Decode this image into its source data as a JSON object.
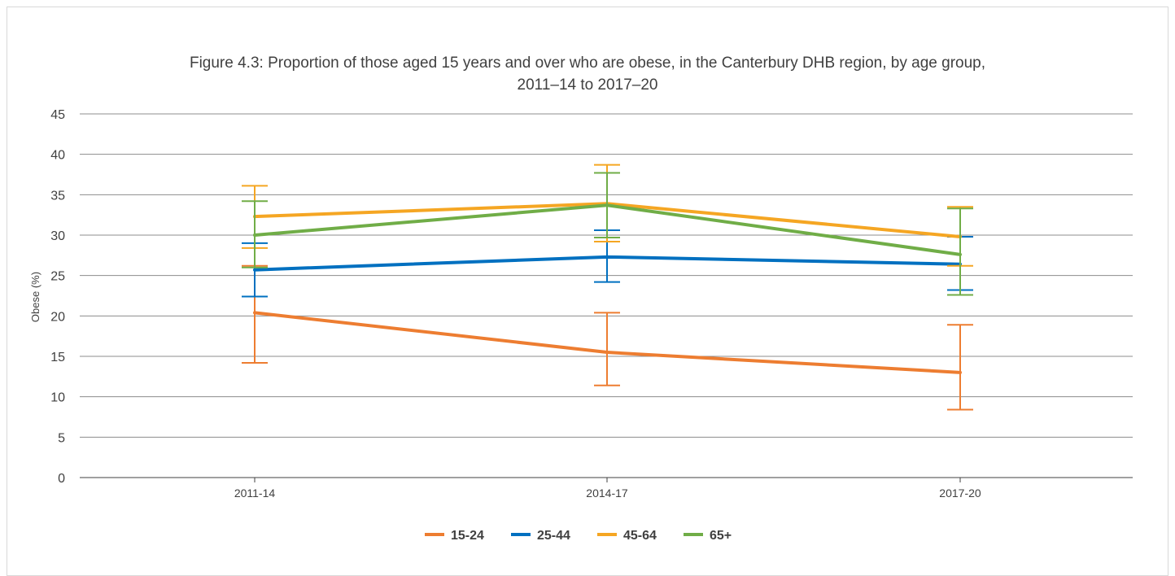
{
  "chart_data": {
    "type": "line",
    "title_line1": "Figure 4.3: Proportion of those aged 15 years and over who are obese, in the Canterbury DHB region, by age group,",
    "title_line2": "2011–14 to 2017–20",
    "xlabel": "",
    "ylabel": "Obese (%)",
    "ylim": [
      0,
      45
    ],
    "yticks": [
      0,
      5,
      10,
      15,
      20,
      25,
      30,
      35,
      40,
      45
    ],
    "categories": [
      "2011-14",
      "2014-17",
      "2017-20"
    ],
    "grid": true,
    "legend_position": "bottom",
    "series": [
      {
        "name": "15-24",
        "color": "#ED7D31",
        "values": [
          20.4,
          15.5,
          13.0
        ],
        "lower": [
          14.2,
          11.4,
          8.4
        ],
        "upper": [
          26.2,
          20.4,
          18.9
        ]
      },
      {
        "name": "25-44",
        "color": "#0070C0",
        "values": [
          25.7,
          27.3,
          26.4
        ],
        "lower": [
          22.4,
          24.2,
          23.2
        ],
        "upper": [
          29.0,
          30.6,
          29.8
        ]
      },
      {
        "name": "45-64",
        "color": "#F5A623",
        "values": [
          32.3,
          33.9,
          29.8
        ],
        "lower": [
          28.4,
          29.2,
          26.2
        ],
        "upper": [
          36.1,
          38.7,
          33.5
        ]
      },
      {
        "name": "65+",
        "color": "#70AD47",
        "values": [
          30.0,
          33.7,
          27.6
        ],
        "lower": [
          26.0,
          29.7,
          22.6
        ],
        "upper": [
          34.2,
          37.7,
          33.3
        ]
      }
    ]
  }
}
